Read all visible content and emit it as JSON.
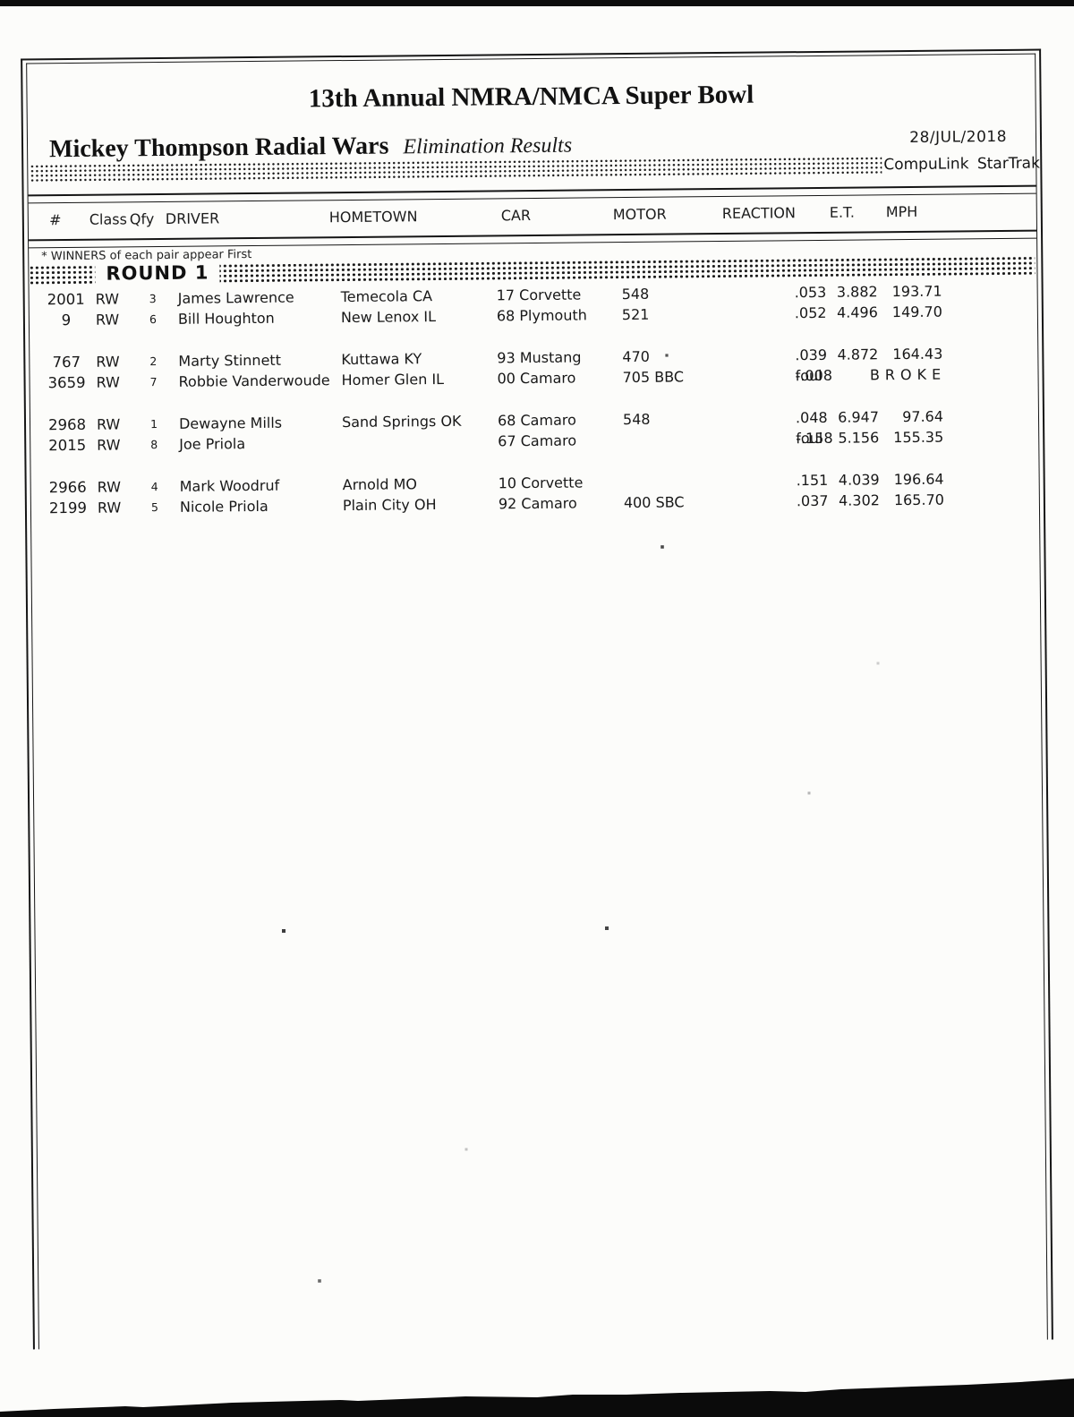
{
  "page": {
    "title": "13th Annual NMRA/NMCA Super Bowl",
    "event_name": "Mickey Thompson Radial Wars",
    "report_type": "Elimination Results",
    "date": "28/JUL/2018",
    "timing_system": "CompuLink StarTrak",
    "winners_note": "* WINNERS of each pair appear First",
    "round_label": "ROUND 1"
  },
  "table": {
    "headers": [
      "#",
      "Class",
      "Qfy",
      "DRIVER",
      "HOMETOWN",
      "CAR",
      "MOTOR",
      "REACTION",
      "E.T.",
      "MPH"
    ],
    "pairs": [
      {
        "rows": [
          {
            "num": "2001",
            "cls": "RW",
            "qfy": "3",
            "driver": "James Lawrence",
            "hometown": "Temecola CA",
            "car": "17 Corvette",
            "motor": "548",
            "foul": "",
            "reaction": ".053",
            "et": "3.882",
            "mph": "193.71",
            "broke": ""
          },
          {
            "num": "9",
            "cls": "RW",
            "qfy": "6",
            "driver": "Bill Houghton",
            "hometown": "New Lenox IL",
            "car": "68 Plymouth",
            "motor": "521",
            "foul": "",
            "reaction": ".052",
            "et": "4.496",
            "mph": "149.70",
            "broke": ""
          }
        ]
      },
      {
        "rows": [
          {
            "num": "767",
            "cls": "RW",
            "qfy": "2",
            "driver": "Marty Stinnett",
            "hometown": "Kuttawa KY",
            "car": "93 Mustang",
            "motor": "470",
            "foul": "",
            "reaction": ".039",
            "et": "4.872",
            "mph": "164.43",
            "broke": ""
          },
          {
            "num": "3659",
            "cls": "RW",
            "qfy": "7",
            "driver": "Robbie Vanderwoude",
            "hometown": "Homer Glen IL",
            "car": "00 Camaro",
            "motor": "705 BBC",
            "foul": "foul",
            "reaction": "-.008",
            "et": "",
            "mph": "",
            "broke": "BROKE"
          }
        ]
      },
      {
        "rows": [
          {
            "num": "2968",
            "cls": "RW",
            "qfy": "1",
            "driver": "Dewayne Mills",
            "hometown": "Sand Springs OK",
            "car": "68 Camaro",
            "motor": "548",
            "foul": "",
            "reaction": ".048",
            "et": "6.947",
            "mph": "97.64",
            "broke": ""
          },
          {
            "num": "2015",
            "cls": "RW",
            "qfy": "8",
            "driver": "Joe Priola",
            "hometown": "",
            "car": "67 Camaro",
            "motor": "",
            "foul": "foul",
            "reaction": "-.158",
            "et": "5.156",
            "mph": "155.35",
            "broke": ""
          }
        ]
      },
      {
        "rows": [
          {
            "num": "2966",
            "cls": "RW",
            "qfy": "4",
            "driver": "Mark Woodruf",
            "hometown": "Arnold MO",
            "car": "10 Corvette",
            "motor": "",
            "foul": "",
            "reaction": ".151",
            "et": "4.039",
            "mph": "196.64",
            "broke": ""
          },
          {
            "num": "2199",
            "cls": "RW",
            "qfy": "5",
            "driver": "Nicole Priola",
            "hometown": "Plain City OH",
            "car": "92 Camaro",
            "motor": "400 SBC",
            "foul": "",
            "reaction": ".037",
            "et": "4.302",
            "mph": "165.70",
            "broke": ""
          }
        ]
      }
    ]
  }
}
